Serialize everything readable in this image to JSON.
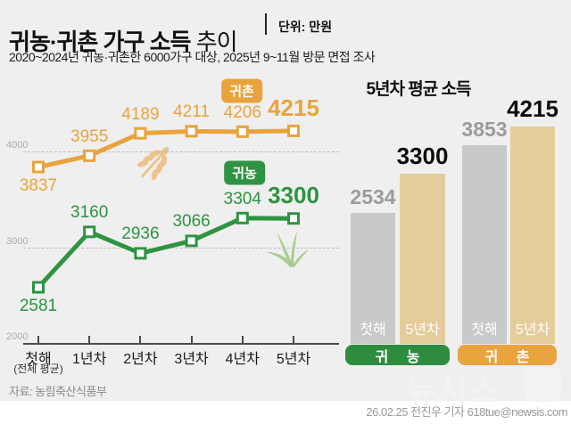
{
  "header": {
    "title_main": "귀농·귀촌 가구 소득",
    "title_light": "추이",
    "unit": "단위: 만원",
    "subtitle": "2020~2024년 귀농·귀촌한 6000가구 대상, 2025년 9~11월 방문 면접 조사"
  },
  "colors": {
    "background": "#efefef",
    "orange": "#e9a33c",
    "green": "#2e9342",
    "bar_gray": "#c7c9cb",
    "bar_tan": "#e5cd9b",
    "pill_green": "#2e8c3f",
    "pill_orange": "#e9a440",
    "grid": "#bfbfbf",
    "axis": "#4a4a4a"
  },
  "chart_data": [
    {
      "type": "line",
      "categories": [
        "첫해",
        "1년차",
        "2년차",
        "3년차",
        "4년차",
        "5년차"
      ],
      "category_note": "(전체 평균)",
      "y_ticks": [
        2000,
        3000,
        4000
      ],
      "ylim": [
        2000,
        4600
      ],
      "grid": "horizontal-dashed",
      "series": [
        {
          "name": "귀촌",
          "color": "#e9a33c",
          "values": [
            3837,
            3955,
            4189,
            4211,
            4206,
            4215
          ],
          "label_side": [
            "below",
            "above",
            "above",
            "above",
            "above",
            "above"
          ]
        },
        {
          "name": "귀농",
          "color": "#2e9342",
          "values": [
            2581,
            3160,
            2936,
            3066,
            3304,
            3300
          ],
          "label_side": [
            "below",
            "above",
            "above",
            "above",
            "above",
            "above"
          ]
        }
      ]
    },
    {
      "type": "bar",
      "title": "5년차 평균 소득",
      "groups": [
        {
          "name": "귀 농",
          "pill_color": "#2e8c3f",
          "bars": [
            {
              "label": "첫해",
              "value": 2534,
              "color": "#c7c9cb",
              "emphasis": false
            },
            {
              "label": "5년차",
              "value": 3300,
              "color": "#e5cd9b",
              "emphasis": true
            }
          ]
        },
        {
          "name": "귀 촌",
          "pill_color": "#e9a440",
          "bars": [
            {
              "label": "첫해",
              "value": 3853,
              "color": "#c7c9cb",
              "emphasis": false
            },
            {
              "label": "5년차",
              "value": 4215,
              "color": "#e5cd9b",
              "emphasis": true
            }
          ]
        }
      ]
    }
  ],
  "footer": {
    "source": "자료: 농림축산식품부",
    "credit": "26.02.25 전진우 기자 618tue@newsis.com",
    "watermark": "뉴시스"
  }
}
